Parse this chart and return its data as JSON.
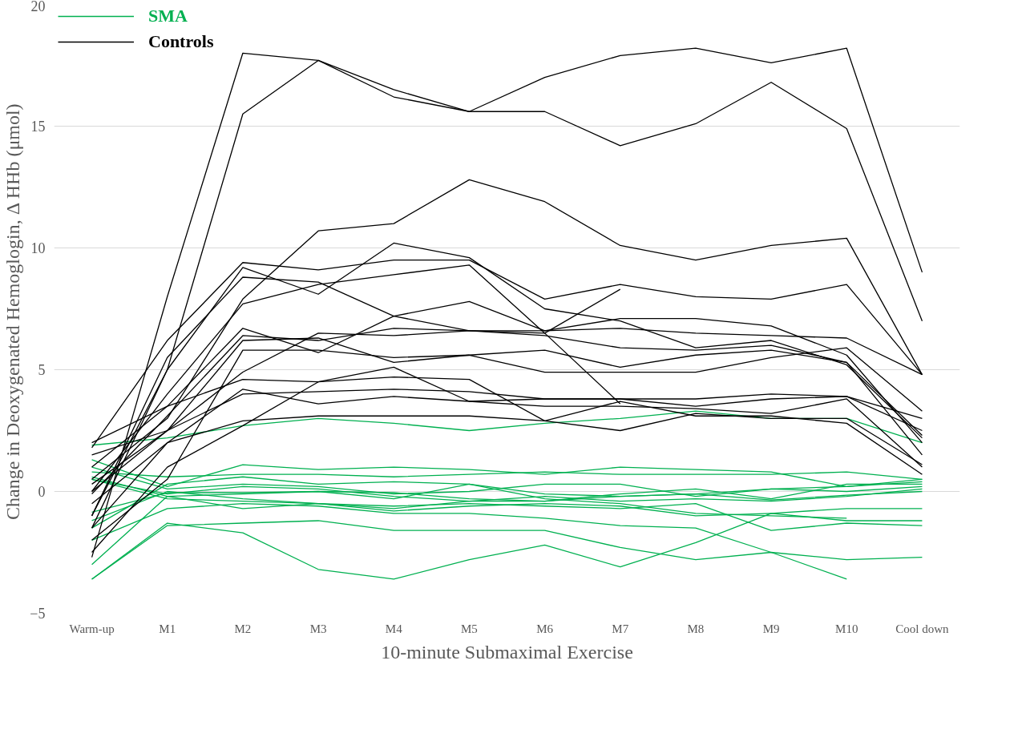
{
  "chart_data": {
    "type": "line",
    "xlabel": "10-minute Submaximal Exercise",
    "ylabel": "Change in Deoxygenated Hemoglogin,  Δ HHb (μmol)",
    "categories": [
      "Warm-up",
      "M1",
      "M2",
      "M3",
      "M4",
      "M5",
      "M6",
      "M7",
      "M8",
      "M9",
      "M10",
      "Cool down"
    ],
    "ylim": [
      -5,
      20
    ],
    "yticks": [
      -5,
      0,
      5,
      10,
      15,
      20
    ],
    "grid": "y",
    "legend": "top left",
    "marker": "none",
    "line_style": "solid",
    "series": [
      {
        "name": "SMA",
        "color": "#00b050",
        "values": [
          1.9,
          2.2,
          2.7,
          3.0,
          2.8,
          2.5,
          2.8,
          3.0,
          3.3,
          3.0,
          3.0,
          2.0
        ]
      },
      {
        "color": "#00b050",
        "values": [
          -3.6,
          -1.3,
          -1.7,
          -3.2,
          -3.6,
          -2.8,
          -2.2,
          -3.1,
          -2.1,
          -0.9,
          -0.7,
          -0.7
        ]
      },
      {
        "color": "#00b050",
        "values": [
          -3.6,
          -1.4,
          -1.3,
          -1.2,
          -1.6,
          -1.6,
          -1.6,
          -2.3,
          -2.8,
          -2.5,
          -2.8,
          -2.7
        ]
      },
      {
        "color": "#00b050",
        "values": [
          -2.0,
          -0.7,
          -0.5,
          -0.6,
          -0.9,
          -0.9,
          -1.1,
          -1.4,
          -1.5,
          -2.5,
          -3.6,
          null
        ]
      },
      {
        "color": "#00b050",
        "values": [
          1.3,
          0.2,
          1.1,
          0.9,
          1.0,
          0.9,
          0.7,
          1.0,
          0.9,
          0.8,
          0.2,
          0.5
        ]
      },
      {
        "color": "#00b050",
        "values": [
          0.8,
          0.6,
          0.7,
          0.7,
          0.6,
          0.7,
          0.8,
          0.7,
          0.7,
          0.7,
          0.8,
          0.5
        ]
      },
      {
        "color": "#00b050",
        "values": [
          -1.5,
          0.3,
          0.6,
          0.3,
          0.4,
          0.3,
          -0.3,
          -0.5,
          -0.9,
          -1.0,
          -1.1,
          null
        ]
      },
      {
        "color": "#00b050",
        "values": [
          0.5,
          -0.3,
          -0.4,
          -0.5,
          -0.8,
          -0.6,
          -0.5,
          -0.6,
          -1.0,
          -0.9,
          -1.2,
          -1.2
        ]
      },
      {
        "color": "#00b050",
        "values": [
          -1.2,
          0.0,
          -0.3,
          -0.5,
          -0.6,
          -0.5,
          -0.6,
          -0.7,
          -0.5,
          -1.6,
          -1.3,
          -1.4
        ]
      },
      {
        "color": "#00b050",
        "values": [
          1.0,
          0.1,
          0.3,
          0.2,
          -0.1,
          0.0,
          0.3,
          0.3,
          -0.2,
          0.1,
          0.2,
          0.4
        ]
      },
      {
        "color": "#00b050",
        "values": [
          0.5,
          -0.1,
          0.2,
          0.1,
          -0.2,
          -0.4,
          -0.4,
          -0.1,
          0.1,
          -0.3,
          0.3,
          0.3
        ]
      },
      {
        "color": "#00b050",
        "values": [
          -3.0,
          -0.2,
          -0.7,
          -0.5,
          -0.7,
          -0.4,
          -0.2,
          -0.4,
          -0.3,
          -0.4,
          -0.2,
          0.1
        ]
      },
      {
        "color": "#00b050",
        "values": [
          0.6,
          -0.2,
          -0.1,
          0.0,
          -0.3,
          0.3,
          -0.1,
          -0.2,
          -0.1,
          0.1,
          0.0,
          0.2
        ]
      },
      {
        "color": "#00b050",
        "values": [
          -0.85,
          -0.05,
          -0.05,
          0.0,
          -0.05,
          -0.3,
          -0.4,
          -0.2,
          -0.1,
          -0.35,
          -0.15,
          0.0
        ]
      },
      {
        "name": "Controls",
        "color": "#000000",
        "values": [
          -2.7,
          8.0,
          18.0,
          17.7,
          16.5,
          15.6,
          17.0,
          17.9,
          18.2,
          17.6,
          18.2,
          9.0
        ]
      },
      {
        "color": "#000000",
        "values": [
          -1.5,
          5.0,
          15.5,
          17.7,
          16.2,
          15.6,
          15.6,
          14.2,
          15.1,
          16.8,
          14.9,
          7.0
        ]
      },
      {
        "color": "#000000",
        "values": [
          0.5,
          3.0,
          7.9,
          10.7,
          11.0,
          12.8,
          11.9,
          10.1,
          9.5,
          10.1,
          10.4,
          4.8
        ]
      },
      {
        "color": "#000000",
        "values": [
          1.8,
          6.2,
          9.4,
          9.1,
          9.5,
          9.5,
          7.9,
          8.5,
          8.0,
          7.9,
          8.5,
          4.8
        ]
      },
      {
        "color": "#000000",
        "values": [
          -1.0,
          5.0,
          9.2,
          8.1,
          10.2,
          9.6,
          7.5,
          7.0,
          5.9,
          6.2,
          5.2,
          2.2
        ]
      },
      {
        "color": "#000000",
        "values": [
          0.0,
          4.0,
          7.7,
          8.5,
          8.9,
          9.3,
          6.5,
          8.3,
          null,
          null,
          null,
          null
        ]
      },
      {
        "color": "#000000",
        "values": [
          -1.0,
          5.5,
          8.8,
          8.6,
          7.2,
          6.6,
          6.5,
          3.6,
          null,
          null,
          null,
          null
        ]
      },
      {
        "color": "#000000",
        "values": [
          1.0,
          3.5,
          6.7,
          5.7,
          7.2,
          7.8,
          6.6,
          7.1,
          7.1,
          6.8,
          5.6,
          2.0
        ]
      },
      {
        "color": "#000000",
        "values": [
          0.3,
          2.5,
          6.2,
          6.3,
          5.3,
          5.6,
          5.8,
          5.1,
          5.6,
          5.8,
          5.3,
          1.5
        ]
      },
      {
        "color": "#000000",
        "values": [
          -2.0,
          0.5,
          5.8,
          5.8,
          5.5,
          5.6,
          4.9,
          4.9,
          4.9,
          5.5,
          5.9,
          3.3
        ]
      },
      {
        "color": "#000000",
        "values": [
          0.0,
          2.5,
          4.9,
          6.5,
          6.4,
          6.6,
          6.6,
          6.7,
          6.5,
          6.4,
          6.3,
          4.8
        ]
      },
      {
        "color": "#000000",
        "values": [
          2.0,
          3.5,
          4.6,
          4.5,
          4.7,
          4.6,
          2.9,
          2.5,
          3.2,
          3.0,
          3.0,
          1.1
        ]
      },
      {
        "color": "#000000",
        "values": [
          -2.5,
          1.0,
          2.7,
          4.5,
          5.1,
          3.7,
          3.8,
          3.8,
          3.8,
          4.0,
          3.9,
          3.0
        ]
      },
      {
        "color": "#000000",
        "values": [
          -0.5,
          2.0,
          4.2,
          3.6,
          3.9,
          3.7,
          3.5,
          3.5,
          3.4,
          3.2,
          3.8,
          1.0
        ]
      },
      {
        "color": "#000000",
        "values": [
          1.5,
          2.5,
          4.0,
          4.1,
          4.2,
          4.1,
          3.8,
          3.8,
          3.5,
          3.8,
          3.9,
          2.5
        ]
      },
      {
        "color": "#000000",
        "values": [
          -1.5,
          2.0,
          2.9,
          3.1,
          3.1,
          3.1,
          2.9,
          3.7,
          3.1,
          3.1,
          2.8,
          0.7
        ]
      },
      {
        "color": "#000000",
        "values": [
          -0.1,
          3.1,
          6.4,
          6.2,
          6.7,
          6.6,
          6.4,
          5.9,
          5.8,
          6.0,
          5.3,
          2.3
        ]
      }
    ]
  }
}
